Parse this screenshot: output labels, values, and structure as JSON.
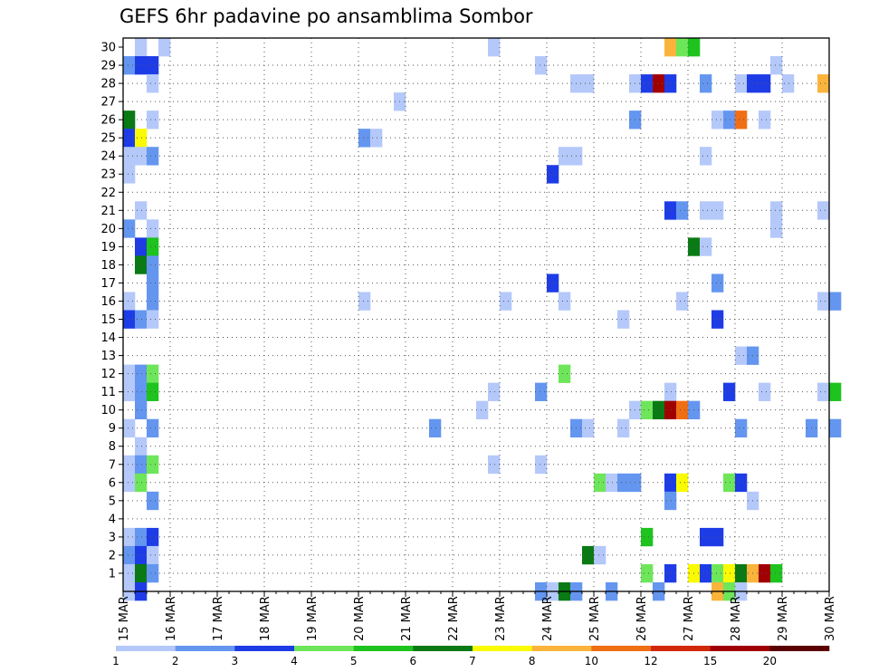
{
  "chart_data": {
    "type": "heatmap",
    "title": "GEFS 6hr padavine po ansamblima Sombor",
    "xlabel": "",
    "ylabel": "",
    "x_tick_labels": [
      "15 MAR",
      "16 MAR",
      "17 MAR",
      "18 MAR",
      "19 MAR",
      "20 MAR",
      "21 MAR",
      "22 MAR",
      "23 MAR",
      "24 MAR",
      "25 MAR",
      "26 MAR",
      "27 MAR",
      "28 MAR",
      "29 MAR",
      "30 MAR"
    ],
    "y_tick_labels": [
      "1",
      "2",
      "3",
      "4",
      "5",
      "6",
      "7",
      "8",
      "9",
      "10",
      "11",
      "12",
      "13",
      "14",
      "15",
      "16",
      "17",
      "18",
      "19",
      "20",
      "21",
      "22",
      "23",
      "24",
      "25",
      "26",
      "27",
      "28",
      "29",
      "30"
    ],
    "x_range": [
      "15 MAR 00Z",
      "30 MAR 00Z"
    ],
    "y_range": [
      0,
      30
    ],
    "time_step_hours": 6,
    "grid": true,
    "legend_position": "bottom",
    "color_levels": [
      1,
      2,
      3,
      4,
      5,
      6,
      7,
      8,
      10,
      12,
      15,
      20
    ],
    "color_level_labels": [
      "1",
      "2",
      "3",
      "4",
      "5",
      "6",
      "7",
      "8",
      "10",
      "12",
      "15",
      "20"
    ],
    "colors": [
      "#b4c8fa",
      "#6496f0",
      "#1e3ce6",
      "#6ee65a",
      "#1ec31e",
      "#0a7a14",
      "#fafa00",
      "#fab43c",
      "#f06e14",
      "#d2280a",
      "#a00000",
      "#5a0000"
    ],
    "cells": [
      {
        "member": 30,
        "time": "15 MAR 06Z",
        "value": 1.5
      },
      {
        "member": 30,
        "time": "15 MAR 18Z",
        "value": 1.5
      },
      {
        "member": 30,
        "time": "22 MAR 18Z",
        "value": 1.5
      },
      {
        "member": 30,
        "time": "26 MAR 12Z",
        "value": 9
      },
      {
        "member": 30,
        "time": "26 MAR 18Z",
        "value": 4.5
      },
      {
        "member": 30,
        "time": "27 MAR 00Z",
        "value": 5.5
      },
      {
        "member": 29,
        "time": "15 MAR 00Z",
        "value": 2.5
      },
      {
        "member": 29,
        "time": "15 MAR 06Z",
        "value": 3.5
      },
      {
        "member": 29,
        "time": "15 MAR 12Z",
        "value": 3.5
      },
      {
        "member": 29,
        "time": "23 MAR 18Z",
        "value": 1.5
      },
      {
        "member": 29,
        "time": "28 MAR 18Z",
        "value": 1.5
      },
      {
        "member": 28,
        "time": "15 MAR 12Z",
        "value": 1.5
      },
      {
        "member": 28,
        "time": "24 MAR 12Z",
        "value": 1.5
      },
      {
        "member": 28,
        "time": "24 MAR 18Z",
        "value": 1.5
      },
      {
        "member": 28,
        "time": "25 MAR 18Z",
        "value": 1.5
      },
      {
        "member": 28,
        "time": "26 MAR 00Z",
        "value": 3.5
      },
      {
        "member": 28,
        "time": "26 MAR 06Z",
        "value": 16
      },
      {
        "member": 28,
        "time": "26 MAR 12Z",
        "value": 3.5
      },
      {
        "member": 28,
        "time": "27 MAR 06Z",
        "value": 2.5
      },
      {
        "member": 28,
        "time": "28 MAR 00Z",
        "value": 1.5
      },
      {
        "member": 28,
        "time": "28 MAR 06Z",
        "value": 3.5
      },
      {
        "member": 28,
        "time": "28 MAR 12Z",
        "value": 3.5
      },
      {
        "member": 28,
        "time": "29 MAR 00Z",
        "value": 1.5
      },
      {
        "member": 28,
        "time": "29 MAR 18Z",
        "value": 9
      },
      {
        "member": 27,
        "time": "20 MAR 18Z",
        "value": 1.5
      },
      {
        "member": 26,
        "time": "15 MAR 00Z",
        "value": 6.5
      },
      {
        "member": 26,
        "time": "15 MAR 12Z",
        "value": 1.5
      },
      {
        "member": 26,
        "time": "25 MAR 18Z",
        "value": 2.5
      },
      {
        "member": 26,
        "time": "27 MAR 12Z",
        "value": 1.5
      },
      {
        "member": 26,
        "time": "27 MAR 18Z",
        "value": 2.5
      },
      {
        "member": 26,
        "time": "28 MAR 00Z",
        "value": 11
      },
      {
        "member": 26,
        "time": "28 MAR 12Z",
        "value": 1.5
      },
      {
        "member": 25,
        "time": "15 MAR 00Z",
        "value": 3.5
      },
      {
        "member": 25,
        "time": "15 MAR 06Z",
        "value": 7.5
      },
      {
        "member": 25,
        "time": "20 MAR 00Z",
        "value": 2.5
      },
      {
        "member": 25,
        "time": "20 MAR 06Z",
        "value": 1.5
      },
      {
        "member": 24,
        "time": "15 MAR 00Z",
        "value": 1.5
      },
      {
        "member": 24,
        "time": "15 MAR 06Z",
        "value": 1.5
      },
      {
        "member": 24,
        "time": "15 MAR 12Z",
        "value": 2.5
      },
      {
        "member": 24,
        "time": "24 MAR 06Z",
        "value": 1.5
      },
      {
        "member": 24,
        "time": "24 MAR 12Z",
        "value": 1.5
      },
      {
        "member": 24,
        "time": "27 MAR 06Z",
        "value": 1.5
      },
      {
        "member": 23,
        "time": "15 MAR 00Z",
        "value": 1.5
      },
      {
        "member": 23,
        "time": "24 MAR 00Z",
        "value": 3.5
      },
      {
        "member": 21,
        "time": "15 MAR 06Z",
        "value": 1.5
      },
      {
        "member": 21,
        "time": "26 MAR 12Z",
        "value": 3.5
      },
      {
        "member": 21,
        "time": "26 MAR 18Z",
        "value": 2.5
      },
      {
        "member": 21,
        "time": "27 MAR 06Z",
        "value": 1.5
      },
      {
        "member": 21,
        "time": "27 MAR 12Z",
        "value": 1.5
      },
      {
        "member": 21,
        "time": "28 MAR 18Z",
        "value": 1.5
      },
      {
        "member": 21,
        "time": "29 MAR 18Z",
        "value": 1.5
      },
      {
        "member": 20,
        "time": "15 MAR 00Z",
        "value": 2.5
      },
      {
        "member": 20,
        "time": "15 MAR 12Z",
        "value": 1.5
      },
      {
        "member": 20,
        "time": "28 MAR 18Z",
        "value": 1.5
      },
      {
        "member": 19,
        "time": "15 MAR 06Z",
        "value": 3.5
      },
      {
        "member": 19,
        "time": "15 MAR 12Z",
        "value": 5.5
      },
      {
        "member": 19,
        "time": "27 MAR 00Z",
        "value": 6.5
      },
      {
        "member": 19,
        "time": "27 MAR 06Z",
        "value": 1.5
      },
      {
        "member": 18,
        "time": "15 MAR 06Z",
        "value": 6.5
      },
      {
        "member": 18,
        "time": "15 MAR 12Z",
        "value": 2.5
      },
      {
        "member": 17,
        "time": "15 MAR 12Z",
        "value": 2.5
      },
      {
        "member": 17,
        "time": "24 MAR 00Z",
        "value": 3.5
      },
      {
        "member": 17,
        "time": "27 MAR 12Z",
        "value": 2.5
      },
      {
        "member": 16,
        "time": "15 MAR 00Z",
        "value": 1.5
      },
      {
        "member": 16,
        "time": "15 MAR 12Z",
        "value": 2.5
      },
      {
        "member": 16,
        "time": "20 MAR 00Z",
        "value": 1.5
      },
      {
        "member": 16,
        "time": "23 MAR 00Z",
        "value": 1.5
      },
      {
        "member": 16,
        "time": "24 MAR 06Z",
        "value": 1.5
      },
      {
        "member": 16,
        "time": "26 MAR 18Z",
        "value": 1.5
      },
      {
        "member": 16,
        "time": "29 MAR 18Z",
        "value": 1.5
      },
      {
        "member": 16,
        "time": "30 MAR 00Z",
        "value": 2.5
      },
      {
        "member": 15,
        "time": "15 MAR 00Z",
        "value": 3.5
      },
      {
        "member": 15,
        "time": "15 MAR 06Z",
        "value": 2.5
      },
      {
        "member": 15,
        "time": "15 MAR 12Z",
        "value": 1.5
      },
      {
        "member": 15,
        "time": "25 MAR 12Z",
        "value": 1.5
      },
      {
        "member": 15,
        "time": "27 MAR 12Z",
        "value": 3.5
      },
      {
        "member": 13,
        "time": "28 MAR 00Z",
        "value": 1.5
      },
      {
        "member": 13,
        "time": "28 MAR 06Z",
        "value": 2.5
      },
      {
        "member": 12,
        "time": "15 MAR 00Z",
        "value": 1.5
      },
      {
        "member": 12,
        "time": "15 MAR 06Z",
        "value": 2.5
      },
      {
        "member": 12,
        "time": "15 MAR 12Z",
        "value": 4.5
      },
      {
        "member": 12,
        "time": "24 MAR 06Z",
        "value": 4.5
      },
      {
        "member": 11,
        "time": "15 MAR 00Z",
        "value": 1.5
      },
      {
        "member": 11,
        "time": "15 MAR 06Z",
        "value": 2.5
      },
      {
        "member": 11,
        "time": "15 MAR 12Z",
        "value": 5.5
      },
      {
        "member": 11,
        "time": "22 MAR 18Z",
        "value": 1.5
      },
      {
        "member": 11,
        "time": "23 MAR 18Z",
        "value": 2.5
      },
      {
        "member": 11,
        "time": "26 MAR 12Z",
        "value": 1.5
      },
      {
        "member": 11,
        "time": "27 MAR 18Z",
        "value": 3.5
      },
      {
        "member": 11,
        "time": "28 MAR 12Z",
        "value": 1.5
      },
      {
        "member": 11,
        "time": "29 MAR 18Z",
        "value": 1.5
      },
      {
        "member": 11,
        "time": "30 MAR 00Z",
        "value": 5.5
      },
      {
        "member": 10,
        "time": "15 MAR 06Z",
        "value": 2.5
      },
      {
        "member": 10,
        "time": "22 MAR 12Z",
        "value": 1.5
      },
      {
        "member": 10,
        "time": "25 MAR 18Z",
        "value": 1.5
      },
      {
        "member": 10,
        "time": "26 MAR 00Z",
        "value": 4.5
      },
      {
        "member": 10,
        "time": "26 MAR 06Z",
        "value": 6.5
      },
      {
        "member": 10,
        "time": "26 MAR 12Z",
        "value": 16
      },
      {
        "member": 10,
        "time": "26 MAR 18Z",
        "value": 11
      },
      {
        "member": 10,
        "time": "27 MAR 00Z",
        "value": 2.5
      },
      {
        "member": 9,
        "time": "15 MAR 00Z",
        "value": 1.5
      },
      {
        "member": 9,
        "time": "15 MAR 12Z",
        "value": 2.5
      },
      {
        "member": 9,
        "time": "21 MAR 12Z",
        "value": 2.5
      },
      {
        "member": 9,
        "time": "24 MAR 12Z",
        "value": 2.5
      },
      {
        "member": 9,
        "time": "24 MAR 18Z",
        "value": 1.5
      },
      {
        "member": 9,
        "time": "25 MAR 12Z",
        "value": 1.5
      },
      {
        "member": 9,
        "time": "28 MAR 00Z",
        "value": 2.5
      },
      {
        "member": 9,
        "time": "29 MAR 12Z",
        "value": 2.5
      },
      {
        "member": 9,
        "time": "30 MAR 00Z",
        "value": 2.5
      },
      {
        "member": 8,
        "time": "15 MAR 06Z",
        "value": 1.5
      },
      {
        "member": 7,
        "time": "15 MAR 00Z",
        "value": 1.5
      },
      {
        "member": 7,
        "time": "15 MAR 06Z",
        "value": 2.5
      },
      {
        "member": 7,
        "time": "15 MAR 12Z",
        "value": 4.5
      },
      {
        "member": 7,
        "time": "22 MAR 18Z",
        "value": 1.5
      },
      {
        "member": 7,
        "time": "23 MAR 18Z",
        "value": 1.5
      },
      {
        "member": 6,
        "time": "15 MAR 00Z",
        "value": 1.5
      },
      {
        "member": 6,
        "time": "15 MAR 06Z",
        "value": 4.5
      },
      {
        "member": 6,
        "time": "25 MAR 00Z",
        "value": 4.5
      },
      {
        "member": 6,
        "time": "25 MAR 06Z",
        "value": 1.5
      },
      {
        "member": 6,
        "time": "25 MAR 12Z",
        "value": 2.5
      },
      {
        "member": 6,
        "time": "25 MAR 18Z",
        "value": 2.5
      },
      {
        "member": 6,
        "time": "26 MAR 12Z",
        "value": 3.5
      },
      {
        "member": 6,
        "time": "26 MAR 18Z",
        "value": 7.5
      },
      {
        "member": 6,
        "time": "27 MAR 18Z",
        "value": 4.5
      },
      {
        "member": 6,
        "time": "28 MAR 00Z",
        "value": 3.5
      },
      {
        "member": 5,
        "time": "15 MAR 12Z",
        "value": 2.5
      },
      {
        "member": 5,
        "time": "26 MAR 12Z",
        "value": 2.5
      },
      {
        "member": 5,
        "time": "28 MAR 06Z",
        "value": 1.5
      },
      {
        "member": 3,
        "time": "15 MAR 00Z",
        "value": 1.5
      },
      {
        "member": 3,
        "time": "15 MAR 06Z",
        "value": 2.5
      },
      {
        "member": 3,
        "time": "15 MAR 12Z",
        "value": 3.5
      },
      {
        "member": 3,
        "time": "26 MAR 00Z",
        "value": 5.5
      },
      {
        "member": 3,
        "time": "27 MAR 06Z",
        "value": 3.5
      },
      {
        "member": 3,
        "time": "27 MAR 12Z",
        "value": 3.5
      },
      {
        "member": 2,
        "time": "15 MAR 00Z",
        "value": 2.5
      },
      {
        "member": 2,
        "time": "15 MAR 06Z",
        "value": 3.5
      },
      {
        "member": 2,
        "time": "15 MAR 12Z",
        "value": 1.5
      },
      {
        "member": 2,
        "time": "24 MAR 18Z",
        "value": 6.5
      },
      {
        "member": 2,
        "time": "25 MAR 00Z",
        "value": 1.5
      },
      {
        "member": 1,
        "time": "15 MAR 00Z",
        "value": 1.5
      },
      {
        "member": 1,
        "time": "15 MAR 06Z",
        "value": 6.5
      },
      {
        "member": 1,
        "time": "15 MAR 12Z",
        "value": 2.5
      },
      {
        "member": 1,
        "time": "26 MAR 00Z",
        "value": 4.5
      },
      {
        "member": 1,
        "time": "26 MAR 12Z",
        "value": 3.5
      },
      {
        "member": 1,
        "time": "27 MAR 00Z",
        "value": 7.5
      },
      {
        "member": 1,
        "time": "27 MAR 06Z",
        "value": 3.5
      },
      {
        "member": 1,
        "time": "27 MAR 12Z",
        "value": 4.5
      },
      {
        "member": 1,
        "time": "27 MAR 18Z",
        "value": 7.5
      },
      {
        "member": 1,
        "time": "28 MAR 00Z",
        "value": 6.5
      },
      {
        "member": 1,
        "time": "28 MAR 06Z",
        "value": 9
      },
      {
        "member": 1,
        "time": "28 MAR 12Z",
        "value": 16
      },
      {
        "member": 1,
        "time": "28 MAR 18Z",
        "value": 5.5
      },
      {
        "member": 0,
        "time": "15 MAR 00Z",
        "value": 1.5
      },
      {
        "member": 0,
        "time": "15 MAR 06Z",
        "value": 3.5
      },
      {
        "member": 0,
        "time": "23 MAR 18Z",
        "value": 2.5
      },
      {
        "member": 0,
        "time": "24 MAR 00Z",
        "value": 1.5
      },
      {
        "member": 0,
        "time": "24 MAR 06Z",
        "value": 6.5
      },
      {
        "member": 0,
        "time": "24 MAR 12Z",
        "value": 2.5
      },
      {
        "member": 0,
        "time": "25 MAR 06Z",
        "value": 2.5
      },
      {
        "member": 0,
        "time": "26 MAR 06Z",
        "value": 2.5
      },
      {
        "member": 0,
        "time": "27 MAR 12Z",
        "value": 9
      },
      {
        "member": 0,
        "time": "27 MAR 18Z",
        "value": 4.5
      },
      {
        "member": 0,
        "time": "28 MAR 00Z",
        "value": 1.5
      }
    ]
  }
}
